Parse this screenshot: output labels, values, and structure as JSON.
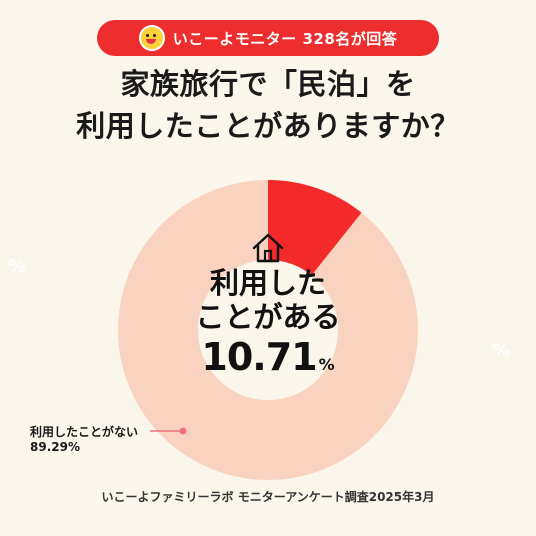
{
  "badge": {
    "text": "いこーよモニター 328名が回答",
    "icon": "face-icon"
  },
  "title": {
    "line1": "家族旅行で「民泊」を",
    "line2": "利用したことがありますか？"
  },
  "center": {
    "line1": "利用した",
    "line2": "ことがある",
    "percent": "10.71",
    "unit": "%",
    "icon": "house-icon"
  },
  "side_label": {
    "label": "利用したことがない",
    "percent": "89.29%"
  },
  "footer": "いこーよファミリーラボ モニターアンケート調査2025年3月",
  "decorations": [
    "%",
    "%"
  ],
  "colors": {
    "background": "#fbf6ec",
    "accent": "#ee2e2e",
    "highlight": "#f42a2a",
    "rest": "#f9d3c0",
    "dot": "#f07080"
  },
  "chart_data": {
    "type": "pie",
    "title": "家族旅行で「民泊」を利用したことがありますか？",
    "donut": true,
    "slices": [
      {
        "label": "利用したことがある",
        "value": 10.71,
        "color": "#f42a2a"
      },
      {
        "label": "利用したことがない",
        "value": 89.29,
        "color": "#f9d3c0"
      }
    ],
    "unit": "%"
  }
}
